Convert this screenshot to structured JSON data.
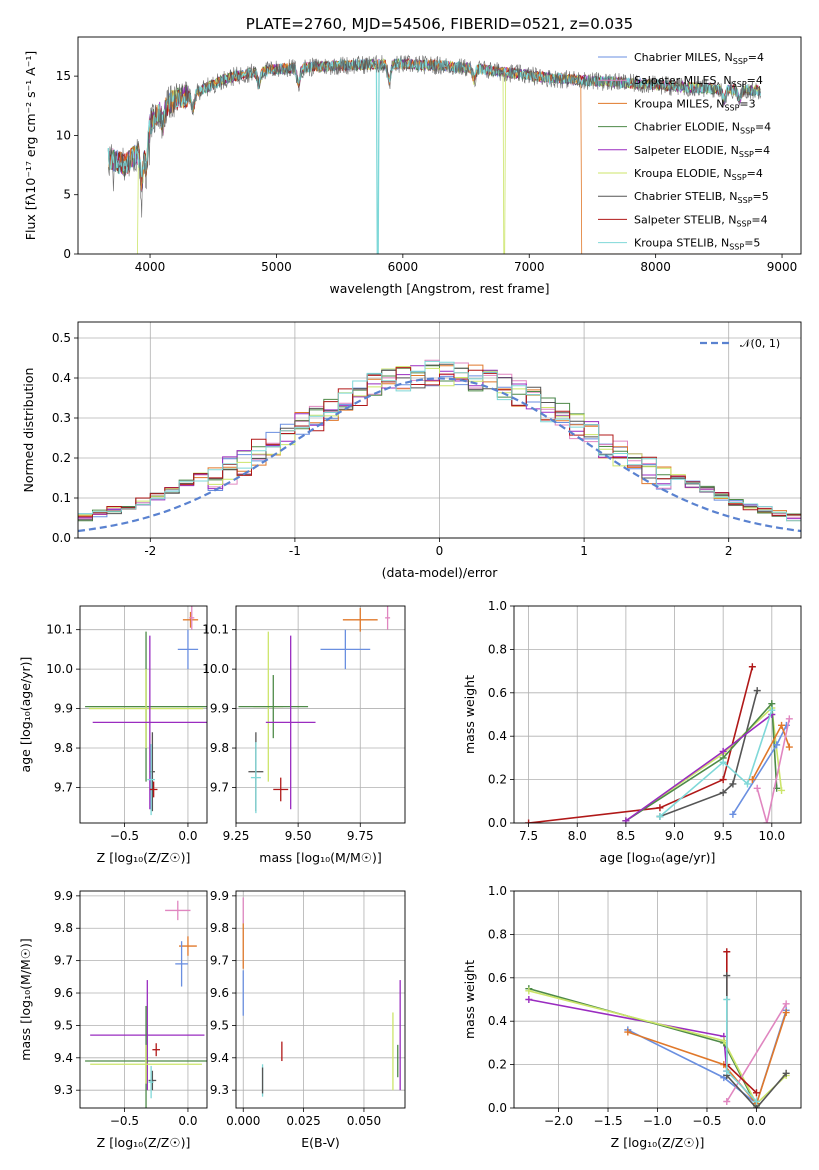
{
  "colors": {
    "chabrier_miles": "#6a8fe0",
    "salpeter_miles": "#e086c0",
    "kroupa_miles": "#e0782a",
    "chabrier_elodie": "#4e8a48",
    "salpeter_elodie": "#9a2cc0",
    "kroupa_elodie": "#cce56a",
    "chabrier_stelib": "#555555",
    "salpeter_stelib": "#b01818",
    "kroupa_stelib": "#7fd8d8"
  },
  "chart_data": [
    {
      "id": "spectrum",
      "type": "line",
      "title": "PLATE=2760, MJD=54506, FIBERID=0521, z=0.035",
      "xlabel": "wavelength [Angstrom, rest frame]",
      "ylabel": "Flux [f_λ 10^-17 erg cm^-2 s^-1 A^-1]",
      "xlim": [
        3430,
        9150
      ],
      "ylim": [
        0,
        18.3
      ],
      "xticks": [
        4000,
        5000,
        6000,
        7000,
        8000,
        9000
      ],
      "yticks": [
        0,
        5,
        10,
        15
      ],
      "legend_position": "top-right",
      "legend": [
        {
          "key": "chabrier_miles",
          "label": "Chabrier MILES, N",
          "sub": "SSP",
          "val": "=4"
        },
        {
          "key": "salpeter_miles",
          "label": "Salpeter MILES, N",
          "sub": "SSP",
          "val": "=4"
        },
        {
          "key": "kroupa_miles",
          "label": "Kroupa MILES, N",
          "sub": "SSP",
          "val": "=3"
        },
        {
          "key": "chabrier_elodie",
          "label": "Chabrier ELODIE, N",
          "sub": "SSP",
          "val": "=4"
        },
        {
          "key": "salpeter_elodie",
          "label": "Salpeter ELODIE, N",
          "sub": "SSP",
          "val": "=4"
        },
        {
          "key": "kroupa_elodie",
          "label": "Kroupa ELODIE, N",
          "sub": "SSP",
          "val": "=4"
        },
        {
          "key": "chabrier_stelib",
          "label": "Chabrier STELIB, N",
          "sub": "SSP",
          "val": "=5"
        },
        {
          "key": "salpeter_stelib",
          "label": "Salpeter STELIB, N",
          "sub": "SSP",
          "val": "=4"
        },
        {
          "key": "kroupa_stelib",
          "label": "Kroupa STELIB, N",
          "sub": "SSP",
          "val": "=5"
        }
      ],
      "continuum": [
        [
          3700,
          8.0
        ],
        [
          3800,
          7.5
        ],
        [
          3900,
          8.5
        ],
        [
          4000,
          11.0
        ],
        [
          4100,
          12.3
        ],
        [
          4200,
          13.0
        ],
        [
          4400,
          13.8
        ],
        [
          4600,
          14.8
        ],
        [
          4800,
          15.3
        ],
        [
          5000,
          15.6
        ],
        [
          5200,
          15.7
        ],
        [
          5500,
          15.9
        ],
        [
          5800,
          16.0
        ],
        [
          6000,
          16.0
        ],
        [
          6300,
          15.9
        ],
        [
          6600,
          15.6
        ],
        [
          6900,
          15.2
        ],
        [
          7200,
          14.8
        ],
        [
          7500,
          14.6
        ],
        [
          7800,
          14.4
        ],
        [
          8200,
          14.1
        ],
        [
          8500,
          13.9
        ],
        [
          8800,
          13.8
        ]
      ],
      "dips": [
        {
          "x": 3934,
          "depth": 3.5
        },
        {
          "x": 3969,
          "depth": 3.0
        },
        {
          "x": 4102,
          "depth": 1.5
        },
        {
          "x": 4340,
          "depth": 1.5
        },
        {
          "x": 4861,
          "depth": 1.2
        },
        {
          "x": 5175,
          "depth": 1.5
        },
        {
          "x": 5893,
          "depth": 1.5
        },
        {
          "x": 6563,
          "depth": 1.0
        },
        {
          "x": 8542,
          "depth": 1.0
        },
        {
          "x": 8662,
          "depth": 1.0
        }
      ],
      "dropouts": [
        {
          "key": "kroupa_elodie",
          "x": 3900
        },
        {
          "key": "kroupa_stelib",
          "x": 5800
        },
        {
          "key": "kroupa_elodie",
          "x": 6800
        },
        {
          "key": "kroupa_miles",
          "x": 7420
        }
      ]
    },
    {
      "id": "residuals",
      "type": "histogram",
      "xlabel": "(data-model)/error",
      "ylabel": "Normed distribution",
      "xlim": [
        -2.5,
        2.5
      ],
      "ylim": [
        0,
        0.54
      ],
      "xticks": [
        -2,
        -1,
        0,
        1,
        2
      ],
      "yticks": [
        0.0,
        0.1,
        0.2,
        0.3,
        0.4,
        0.5
      ],
      "legend_position": "top-right",
      "legend": [
        {
          "label": "𝒩(0, 1)",
          "style": "dashed",
          "color": "#5a82d0"
        }
      ],
      "bin_width": 0.1,
      "bin_start": -2.5,
      "series_keys": [
        "chabrier_miles",
        "salpeter_miles",
        "kroupa_miles",
        "chabrier_elodie",
        "salpeter_elodie",
        "kroupa_elodie",
        "chabrier_stelib",
        "salpeter_stelib",
        "kroupa_stelib"
      ]
    },
    {
      "id": "z_age",
      "type": "errorbar",
      "xlabel": "Z [log₁₀(Z/Z☉)]",
      "ylabel": "age  [log₁₀(age/yr)]",
      "xlim": [
        -0.85,
        0.15
      ],
      "ylim": [
        9.61,
        10.16
      ],
      "xticks": [
        -0.5,
        0.0
      ],
      "yticks": [
        9.7,
        9.8,
        9.9,
        10.0,
        10.1
      ],
      "points": [
        {
          "key": "kroupa_miles",
          "x": 0.02,
          "y": 10.125,
          "xerr": 0.06,
          "yerr": 0.02
        },
        {
          "key": "salpeter_miles",
          "x": 0.03,
          "y": 10.13,
          "xerr": 0.02,
          "yerr": 0.03
        },
        {
          "key": "chabrier_miles",
          "x": 0.0,
          "y": 10.05,
          "xerr": 0.08,
          "yerr": 0.05
        },
        {
          "key": "chabrier_elodie",
          "x": -0.33,
          "y": 9.905,
          "xerr": 0.48,
          "yerr": 0.19
        },
        {
          "key": "kroupa_elodie",
          "x": -0.33,
          "y": 9.9,
          "xerr": 0.45,
          "yerr": 0.1
        },
        {
          "key": "salpeter_elodie",
          "x": -0.3,
          "y": 9.865,
          "xerr": 0.45,
          "yerr": 0.22
        },
        {
          "key": "chabrier_stelib",
          "x": -0.28,
          "y": 9.74,
          "xerr": 0.02,
          "yerr": 0.1
        },
        {
          "key": "kroupa_stelib",
          "x": -0.29,
          "y": 9.72,
          "xerr": 0.03,
          "yerr": 0.09
        },
        {
          "key": "salpeter_stelib",
          "x": -0.27,
          "y": 9.695,
          "xerr": 0.03,
          "yerr": 0.02
        }
      ]
    },
    {
      "id": "mass_age",
      "type": "errorbar",
      "xlabel": "mass [log₁₀(M/M☉)]",
      "ylabel": "",
      "xlim": [
        9.25,
        9.93
      ],
      "ylim": [
        9.61,
        10.16
      ],
      "xticks": [
        9.25,
        9.5,
        9.75
      ],
      "yticks": [
        9.7,
        9.8,
        9.9,
        10.0,
        10.1
      ],
      "points": [
        {
          "key": "salpeter_miles",
          "x": 9.86,
          "y": 10.13,
          "xerr": 0.01,
          "yerr": 0.03
        },
        {
          "key": "kroupa_miles",
          "x": 9.75,
          "y": 10.125,
          "xerr": 0.07,
          "yerr": 0.03
        },
        {
          "key": "chabrier_miles",
          "x": 9.69,
          "y": 10.05,
          "xerr": 0.1,
          "yerr": 0.05
        },
        {
          "key": "kroupa_elodie",
          "x": 9.38,
          "y": 9.905,
          "xerr": 0.06,
          "yerr": 0.19
        },
        {
          "key": "chabrier_elodie",
          "x": 9.4,
          "y": 9.905,
          "xerr": 0.14,
          "yerr": 0.08
        },
        {
          "key": "salpeter_elodie",
          "x": 9.47,
          "y": 9.865,
          "xerr": 0.1,
          "yerr": 0.22
        },
        {
          "key": "chabrier_stelib",
          "x": 9.33,
          "y": 9.74,
          "xerr": 0.03,
          "yerr": 0.1
        },
        {
          "key": "kroupa_stelib",
          "x": 9.33,
          "y": 9.725,
          "xerr": 0.02,
          "yerr": 0.09
        },
        {
          "key": "salpeter_stelib",
          "x": 9.43,
          "y": 9.695,
          "xerr": 0.03,
          "yerr": 0.03
        }
      ]
    },
    {
      "id": "age_weight",
      "type": "line",
      "xlabel": "age  [log₁₀(age/yr)]",
      "ylabel": "mass weight",
      "xlim": [
        7.35,
        10.3
      ],
      "ylim": [
        0,
        1.0
      ],
      "xticks": [
        7.5,
        8.0,
        8.5,
        9.0,
        9.5,
        10.0
      ],
      "yticks": [
        0.0,
        0.2,
        0.4,
        0.6,
        0.8,
        1.0
      ],
      "series": [
        {
          "key": "salpeter_stelib",
          "points": [
            [
              7.5,
              0.0
            ],
            [
              8.85,
              0.07
            ],
            [
              9.5,
              0.2
            ],
            [
              9.8,
              0.72
            ]
          ]
        },
        {
          "key": "chabrier_stelib",
          "points": [
            [
              8.85,
              0.03
            ],
            [
              9.5,
              0.14
            ],
            [
              9.6,
              0.18
            ],
            [
              9.85,
              0.61
            ]
          ]
        },
        {
          "key": "kroupa_elodie",
          "points": [
            [
              8.5,
              0.01
            ],
            [
              9.5,
              0.32
            ],
            [
              10.0,
              0.53
            ],
            [
              10.1,
              0.15
            ]
          ]
        },
        {
          "key": "chabrier_elodie",
          "points": [
            [
              8.5,
              0.01
            ],
            [
              9.5,
              0.3
            ],
            [
              10.0,
              0.55
            ],
            [
              10.05,
              0.16
            ]
          ]
        },
        {
          "key": "salpeter_elodie",
          "points": [
            [
              8.5,
              0.01
            ],
            [
              9.5,
              0.33
            ],
            [
              10.0,
              0.5
            ]
          ]
        },
        {
          "key": "kroupa_stelib",
          "points": [
            [
              8.85,
              0.03
            ],
            [
              9.5,
              0.28
            ],
            [
              9.75,
              0.18
            ],
            [
              10.0,
              0.52
            ]
          ]
        },
        {
          "key": "chabrier_miles",
          "points": [
            [
              9.6,
              0.04
            ],
            [
              10.05,
              0.36
            ],
            [
              10.15,
              0.45
            ]
          ]
        },
        {
          "key": "kroupa_miles",
          "points": [
            [
              9.8,
              0.2
            ],
            [
              10.1,
              0.45
            ],
            [
              10.18,
              0.35
            ]
          ]
        },
        {
          "key": "salpeter_miles",
          "points": [
            [
              9.85,
              0.16
            ],
            [
              9.95,
              0.0
            ],
            [
              10.18,
              0.48
            ]
          ]
        }
      ]
    },
    {
      "id": "z_mass",
      "type": "errorbar",
      "xlabel": "Z [log₁₀(Z/Z☉)]",
      "ylabel": "mass [log₁₀(M/M☉)]",
      "xlim": [
        -0.85,
        0.15
      ],
      "ylim": [
        9.245,
        9.915
      ],
      "xticks": [
        -0.5,
        0.0
      ],
      "yticks": [
        9.3,
        9.4,
        9.5,
        9.6,
        9.7,
        9.8,
        9.9
      ],
      "points": [
        {
          "key": "salpeter_miles",
          "x": -0.08,
          "y": 9.855,
          "xerr": 0.1,
          "yerr": 0.03
        },
        {
          "key": "kroupa_miles",
          "x": 0.0,
          "y": 9.745,
          "xerr": 0.07,
          "yerr": 0.03
        },
        {
          "key": "chabrier_miles",
          "x": -0.05,
          "y": 9.69,
          "xerr": 0.05,
          "yerr": 0.07
        },
        {
          "key": "salpeter_elodie",
          "x": -0.32,
          "y": 9.47,
          "xerr": 0.45,
          "yerr": 0.17
        },
        {
          "key": "chabrier_elodie",
          "x": -0.33,
          "y": 9.39,
          "xerr": 0.48,
          "yerr": 0.17
        },
        {
          "key": "kroupa_elodie",
          "x": -0.33,
          "y": 9.38,
          "xerr": 0.44,
          "yerr": 0.06
        },
        {
          "key": "salpeter_stelib",
          "x": -0.25,
          "y": 9.425,
          "xerr": 0.03,
          "yerr": 0.02
        },
        {
          "key": "chabrier_stelib",
          "x": -0.28,
          "y": 9.33,
          "xerr": 0.03,
          "yerr": 0.03
        },
        {
          "key": "kroupa_stelib",
          "x": -0.29,
          "y": 9.325,
          "xerr": 0.02,
          "yerr": 0.05
        }
      ]
    },
    {
      "id": "ebv_mass",
      "type": "errorbar",
      "xlabel": "E(B-V)",
      "ylabel": "",
      "xlim": [
        -0.003,
        0.067
      ],
      "ylim": [
        9.245,
        9.915
      ],
      "xticks": [
        0.0,
        0.025,
        0.05
      ],
      "xtick_labels": [
        "0.000",
        "0.025",
        "0.050"
      ],
      "yticks": [
        9.3,
        9.4,
        9.5,
        9.6,
        9.7,
        9.8,
        9.9
      ],
      "points": [
        {
          "key": "salpeter_miles",
          "x": 0.0,
          "y": 9.855,
          "xerr": 0.0,
          "yerr": 0.04
        },
        {
          "key": "kroupa_miles",
          "x": 0.0,
          "y": 9.745,
          "xerr": 0.0,
          "yerr": 0.07
        },
        {
          "key": "chabrier_miles",
          "x": 0.0,
          "y": 9.6,
          "xerr": 0.0,
          "yerr": 0.07
        },
        {
          "key": "kroupa_stelib",
          "x": 0.008,
          "y": 9.33,
          "xerr": 0.0,
          "yerr": 0.05
        },
        {
          "key": "chabrier_stelib",
          "x": 0.008,
          "y": 9.33,
          "xerr": 0.0,
          "yerr": 0.04
        },
        {
          "key": "salpeter_stelib",
          "x": 0.016,
          "y": 9.42,
          "xerr": 0.0,
          "yerr": 0.03
        },
        {
          "key": "kroupa_elodie",
          "x": 0.062,
          "y": 9.42,
          "xerr": 0.0,
          "yerr": 0.12
        },
        {
          "key": "salpeter_elodie",
          "x": 0.065,
          "y": 9.47,
          "xerr": 0.0,
          "yerr": 0.17
        },
        {
          "key": "chabrier_elodie",
          "x": 0.064,
          "y": 9.39,
          "xerr": 0.0,
          "yerr": 0.05
        }
      ]
    },
    {
      "id": "z_weight",
      "type": "line",
      "xlabel": "Z [log₁₀(Z/Z☉)]",
      "ylabel": "mass weight",
      "xlim": [
        -2.45,
        0.45
      ],
      "ylim": [
        0,
        1.0
      ],
      "xticks": [
        -2.0,
        -1.5,
        -1.0,
        -0.5,
        0.0
      ],
      "yticks": [
        0.0,
        0.2,
        0.4,
        0.6,
        0.8,
        1.0
      ],
      "series": [
        {
          "key": "salpeter_elodie",
          "points": [
            [
              -2.3,
              0.5
            ],
            [
              -0.33,
              0.33
            ],
            [
              -0.3,
              0.17
            ]
          ]
        },
        {
          "key": "chabrier_elodie",
          "points": [
            [
              -2.3,
              0.55
            ],
            [
              -0.33,
              0.3
            ],
            [
              0.0,
              0.01
            ]
          ]
        },
        {
          "key": "kroupa_elodie",
          "points": [
            [
              -2.3,
              0.54
            ],
            [
              -0.33,
              0.31
            ],
            [
              0.0,
              0.02
            ],
            [
              0.3,
              0.15
            ]
          ]
        },
        {
          "key": "chabrier_miles",
          "points": [
            [
              -1.3,
              0.36
            ],
            [
              -0.33,
              0.14
            ],
            [
              0.0,
              0.02
            ],
            [
              0.3,
              0.45
            ]
          ]
        },
        {
          "key": "kroupa_miles",
          "points": [
            [
              -1.3,
              0.35
            ],
            [
              -0.33,
              0.2
            ],
            [
              0.0,
              0.02
            ],
            [
              0.3,
              0.44
            ]
          ]
        },
        {
          "key": "salpeter_miles",
          "points": [
            [
              -0.3,
              0.03
            ],
            [
              0.3,
              0.48
            ]
          ]
        },
        {
          "key": "salpeter_stelib",
          "points": [
            [
              -0.3,
              0.72
            ],
            [
              -0.3,
              0.2
            ],
            [
              0.0,
              0.07
            ]
          ]
        },
        {
          "key": "chabrier_stelib",
          "points": [
            [
              -0.3,
              0.61
            ],
            [
              -0.3,
              0.15
            ],
            [
              0.0,
              0.0
            ],
            [
              0.3,
              0.16
            ]
          ]
        },
        {
          "key": "kroupa_stelib",
          "points": [
            [
              -0.3,
              0.5
            ],
            [
              -0.3,
              0.17
            ],
            [
              0.0,
              0.03
            ]
          ]
        }
      ]
    }
  ]
}
